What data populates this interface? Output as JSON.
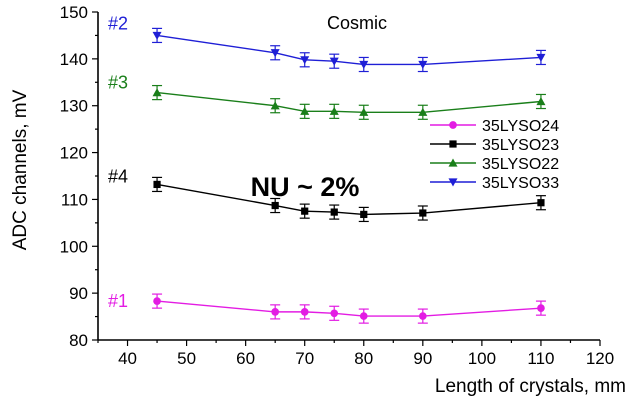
{
  "chart_data": {
    "type": "line",
    "title": "Cosmic",
    "xlabel": "Length of crystals, mm",
    "ylabel": "ADC channels, mV",
    "xlim": [
      35,
      120
    ],
    "ylim": [
      80,
      150
    ],
    "x_ticks": [
      "40",
      "50",
      "60",
      "70",
      "80",
      "90",
      "100",
      "110",
      "120"
    ],
    "y_ticks": [
      "80",
      "90",
      "100",
      "110",
      "120",
      "130",
      "140",
      "150"
    ],
    "legend_position": "right",
    "grid": false,
    "annotation": "NU ~ 2%",
    "series": [
      {
        "name": "35LYSO24",
        "tag": "#1",
        "color": "#e31ce3",
        "marker": "circle",
        "x": [
          45,
          65,
          70,
          75,
          80,
          90,
          110
        ],
        "y": [
          88.3,
          86.0,
          86.0,
          85.7,
          85.1,
          85.1,
          86.8
        ],
        "err": [
          1.5,
          1.5,
          1.5,
          1.5,
          1.5,
          1.5,
          1.5
        ]
      },
      {
        "name": "35LYSO23",
        "tag": "#4",
        "color": "#000000",
        "marker": "square",
        "x": [
          45,
          65,
          70,
          75,
          80,
          90,
          110
        ],
        "y": [
          113.2,
          108.7,
          107.5,
          107.3,
          106.8,
          107.1,
          109.3
        ],
        "err": [
          1.5,
          1.5,
          1.5,
          1.5,
          1.5,
          1.5,
          1.5
        ]
      },
      {
        "name": "35LYSO22",
        "tag": "#3",
        "color": "#1a7f1a",
        "marker": "triangle-up",
        "x": [
          45,
          65,
          70,
          75,
          80,
          90,
          110
        ],
        "y": [
          132.8,
          130.0,
          128.8,
          128.8,
          128.6,
          128.6,
          130.9
        ],
        "err": [
          1.5,
          1.5,
          1.5,
          1.5,
          1.5,
          1.5,
          1.5
        ]
      },
      {
        "name": "35LYSO33",
        "tag": "#2",
        "color": "#1f1fd6",
        "marker": "triangle-down",
        "x": [
          45,
          65,
          70,
          75,
          80,
          90,
          110
        ],
        "y": [
          145.0,
          141.3,
          139.8,
          139.5,
          138.8,
          138.8,
          140.3
        ],
        "err": [
          1.5,
          1.5,
          1.5,
          1.5,
          1.5,
          1.5,
          1.5
        ]
      }
    ]
  }
}
